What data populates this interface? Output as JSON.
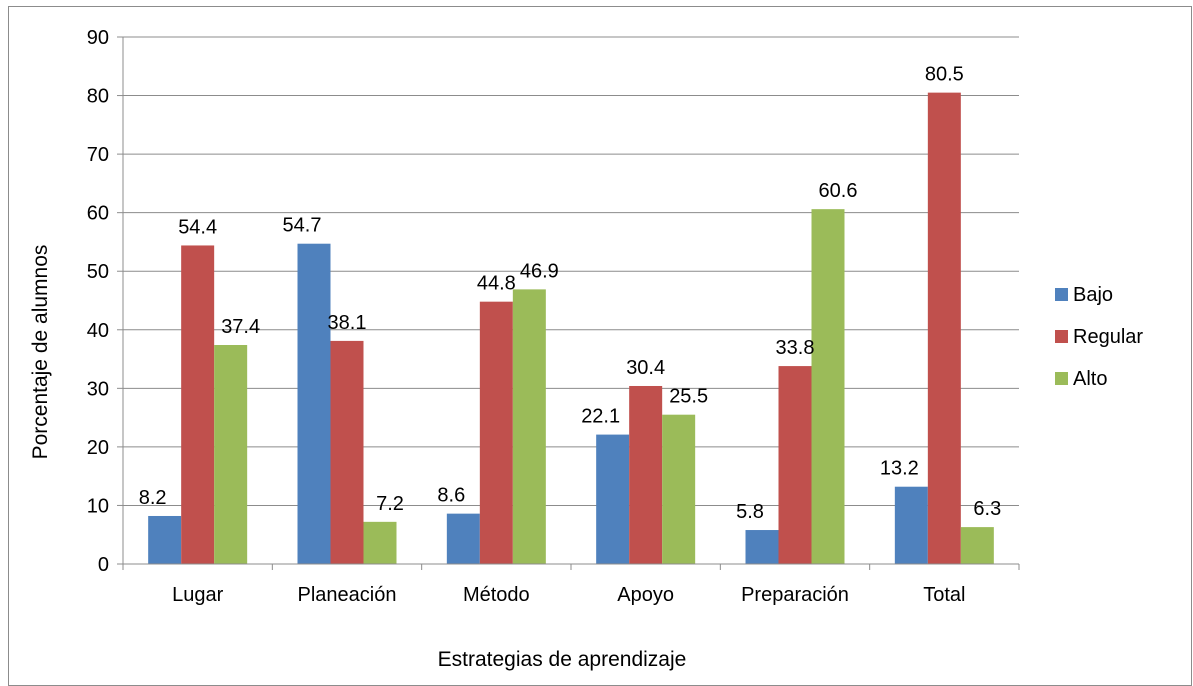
{
  "chart_data": {
    "type": "bar",
    "categories": [
      "Lugar",
      "Planeación",
      "Método",
      "Apoyo",
      "Preparación",
      "Total"
    ],
    "series": [
      {
        "name": "Bajo",
        "color": "#4f81bd",
        "values": [
          8.2,
          54.7,
          8.6,
          22.1,
          5.8,
          13.2
        ]
      },
      {
        "name": "Regular",
        "color": "#c0504d",
        "values": [
          54.4,
          38.1,
          44.8,
          30.4,
          33.8,
          80.5
        ]
      },
      {
        "name": "Alto",
        "color": "#9bbb59",
        "values": [
          37.4,
          7.2,
          46.9,
          25.5,
          60.6,
          6.3
        ]
      }
    ],
    "xlabel": "Estrategias de aprendizaje",
    "ylabel": "Porcentaje de alumnos",
    "ylim": [
      0,
      90
    ],
    "yticks": [
      0,
      10,
      20,
      30,
      40,
      50,
      60,
      70,
      80,
      90
    ],
    "grid": true,
    "legend_position": "right"
  }
}
